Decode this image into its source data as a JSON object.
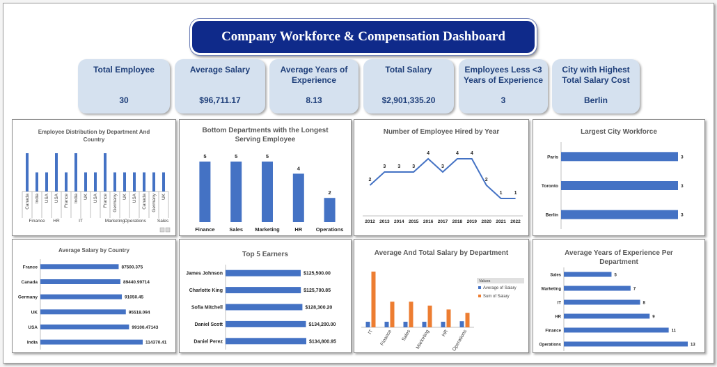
{
  "dashboard": {
    "title": "Company Workforce & Compensation Dashboard"
  },
  "kpis": [
    {
      "label": "Total Employee",
      "value": "30"
    },
    {
      "label": "Average Salary",
      "value": "$96,711.17"
    },
    {
      "label": "Average Years of Experience",
      "value": "8.13"
    },
    {
      "label": "Total Salary",
      "value": "$2,901,335.20"
    },
    {
      "label": "Employees Less <3 Years of Experience",
      "value": "3"
    },
    {
      "label": "City with Highest Total Salary Cost",
      "value": "Berlin"
    }
  ],
  "colors": {
    "blue": "#4472c4",
    "orange": "#ed7d31"
  },
  "chart_data": [
    {
      "id": "dept_country",
      "type": "bar",
      "title": "Employee Distribution by Department And Country",
      "groups": [
        {
          "name": "Finance",
          "categories": [
            "Canada",
            "India",
            "USA"
          ],
          "values": [
            2,
            1,
            1
          ]
        },
        {
          "name": "HR",
          "categories": [
            "USA"
          ],
          "values": [
            2
          ]
        },
        {
          "name": "IT",
          "categories": [
            "France",
            "India",
            "UK",
            "USA"
          ],
          "values": [
            1,
            2,
            1,
            1
          ]
        },
        {
          "name": "Marketing",
          "categories": [
            "France",
            "Germany",
            "UK"
          ],
          "values": [
            2,
            1,
            1
          ]
        },
        {
          "name": "Operations",
          "categories": [
            "USA",
            "Canada"
          ],
          "values": [
            1,
            1
          ]
        },
        {
          "name": "Sales",
          "categories": [
            "Germany",
            "UK"
          ],
          "values": [
            1,
            1
          ]
        }
      ],
      "group_labels": [
        "Finance",
        "HR",
        "IT",
        "Marketing",
        "Operations",
        "Sales"
      ],
      "ylim": [
        0,
        2
      ]
    },
    {
      "id": "longest_serving",
      "type": "bar",
      "title": "Bottom Departments with the Longest Serving Employee",
      "categories": [
        "Finance",
        "Sales",
        "Marketing",
        "HR",
        "Operations"
      ],
      "values": [
        5,
        5,
        5,
        4,
        2
      ],
      "ylim": [
        0,
        5
      ]
    },
    {
      "id": "hired_by_year",
      "type": "line",
      "title": "Number of Employee Hired by Year",
      "categories": [
        "2012",
        "2013",
        "2014",
        "2015",
        "2016",
        "2017",
        "2018",
        "2019",
        "2020",
        "2021",
        "2022"
      ],
      "values": [
        2,
        3,
        3,
        3,
        4,
        3,
        4,
        4,
        2,
        1,
        1
      ],
      "ylim": [
        0,
        5
      ]
    },
    {
      "id": "city_workforce",
      "type": "bar",
      "orientation": "horizontal",
      "title": "Largest City Workforce",
      "categories": [
        "Paris",
        "Toronto",
        "Berlin"
      ],
      "values": [
        3,
        3,
        3
      ],
      "xlim": [
        0,
        3
      ]
    },
    {
      "id": "salary_by_country",
      "type": "bar",
      "orientation": "horizontal",
      "title": "Average Salary by Country",
      "categories": [
        "France",
        "Canada",
        "Germany",
        "UK",
        "USA",
        "India"
      ],
      "values": [
        87500.375,
        89440.99714,
        91050.45,
        95518.094,
        99100.47143,
        114370.41
      ],
      "labels": [
        "87500.375",
        "89440.99714",
        "91050.45",
        "95518.094",
        "99100.47143",
        "114370.41"
      ],
      "xlim": [
        0,
        114370.41
      ]
    },
    {
      "id": "top_earners",
      "type": "bar",
      "orientation": "horizontal",
      "title": "Top 5 Earners",
      "categories": [
        "James Johnson",
        "Charlotte King",
        "Sofia Mitchell",
        "Daniel Scott",
        "Daniel Perez"
      ],
      "values": [
        125500.0,
        125700.85,
        128300.2,
        134200.0,
        134800.95
      ],
      "labels": [
        "$125,500.00",
        "$125,700.85",
        "$128,300.20",
        "$134,200.00",
        "$134,800.95"
      ],
      "xlim": [
        0,
        134800.95
      ]
    },
    {
      "id": "avg_total_salary",
      "type": "bar",
      "title": "Average And Total Salary by Department",
      "categories": [
        "IT",
        "Finance",
        "Sales",
        "Marketing",
        "HR",
        "Operations"
      ],
      "legend_title": "Values",
      "series": [
        {
          "name": "Average of Salary",
          "values": [
            100000,
            100000,
            100000,
            100000,
            100000,
            110000
          ]
        },
        {
          "name": "Sum of Salary",
          "values": [
            1000000,
            460000,
            460000,
            390000,
            320000,
            260000
          ]
        }
      ],
      "ylim": [
        0,
        1000000
      ]
    },
    {
      "id": "avg_experience",
      "type": "bar",
      "orientation": "horizontal",
      "title": "Average Years of Experience Per Department",
      "categories": [
        "Sales",
        "Marketing",
        "IT",
        "HR",
        "Finance",
        "Operations"
      ],
      "values": [
        5,
        7,
        8,
        9,
        11,
        13
      ],
      "xlim": [
        0,
        13
      ]
    }
  ]
}
